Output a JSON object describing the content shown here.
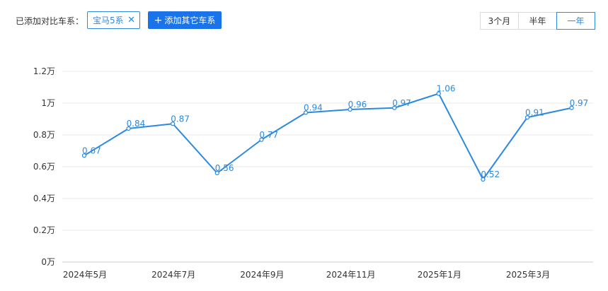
{
  "toolbar": {
    "compare_label": "已添加对比车系：",
    "selected_model": "宝马5系",
    "remove_icon": "close-icon",
    "add_button_label": "添加其它车系",
    "add_icon": "plus-icon",
    "periods": [
      "3个月",
      "半年",
      "一年"
    ],
    "active_period": "一年"
  },
  "colors": {
    "accent": "#2b8ae0",
    "button_blue": "#1a73e8",
    "grid": "#e8e8e8"
  },
  "chart_data": {
    "type": "line",
    "title": "",
    "xlabel": "",
    "ylabel": "",
    "x": [
      "2024年5月",
      "2024年6月",
      "2024年7月",
      "2024年8月",
      "2024年9月",
      "2024年10月",
      "2024年11月",
      "2024年12月",
      "2025年1月",
      "2025年2月",
      "2025年3月",
      "2025年4月"
    ],
    "x_tick_labels": [
      "2024年5月",
      "",
      "2024年7月",
      "",
      "2024年9月",
      "",
      "2024年11月",
      "",
      "2025年1月",
      "",
      "2025年3月",
      ""
    ],
    "series": [
      {
        "values": [
          0.67,
          0.84,
          0.87,
          0.56,
          0.77,
          0.94,
          0.96,
          0.97,
          1.06,
          0.52,
          0.91,
          0.97
        ],
        "labels": [
          "0.67",
          "0.84",
          "0.87",
          "0.56",
          "0.77",
          "0.94",
          "0.96",
          "0.97",
          "1.06",
          "0.52",
          "0.91",
          "0.97"
        ]
      }
    ],
    "yticks": [
      0,
      0.2,
      0.4,
      0.6,
      0.8,
      1.0,
      1.2
    ],
    "ytick_labels": [
      "0万",
      "0.2万",
      "0.4万",
      "0.6万",
      "0.8万",
      "1万",
      "1.2万"
    ],
    "ylim": [
      0,
      1.2
    ],
    "grid": true,
    "legend": "none"
  }
}
